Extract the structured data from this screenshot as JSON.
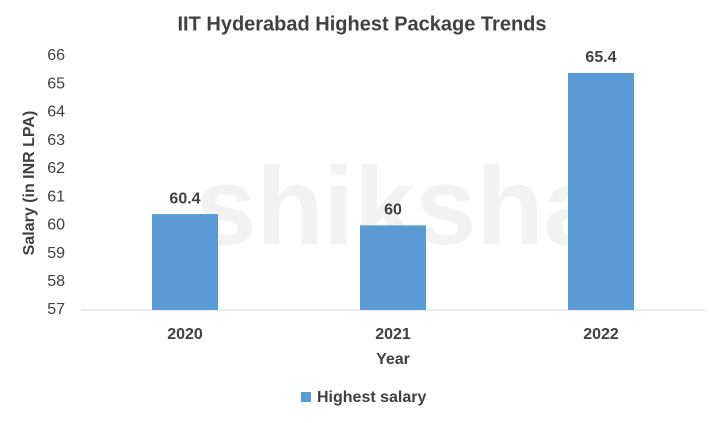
{
  "chart_data": {
    "type": "bar",
    "title": "IIT Hyderabad Highest Package Trends",
    "x_label": "Year",
    "y_label": "Salary (in INR LPA)",
    "categories": [
      "2020",
      "2021",
      "2022"
    ],
    "series": [
      {
        "name": "Highest salary",
        "color": "#5b9bd5",
        "values": [
          60.4,
          60,
          65.4
        ]
      }
    ],
    "ylim": [
      57,
      66
    ],
    "yticks": [
      57,
      58,
      59,
      60,
      61,
      62,
      63,
      64,
      65,
      66
    ],
    "grid": false,
    "legend": "bottom",
    "watermark": "shiksha"
  }
}
